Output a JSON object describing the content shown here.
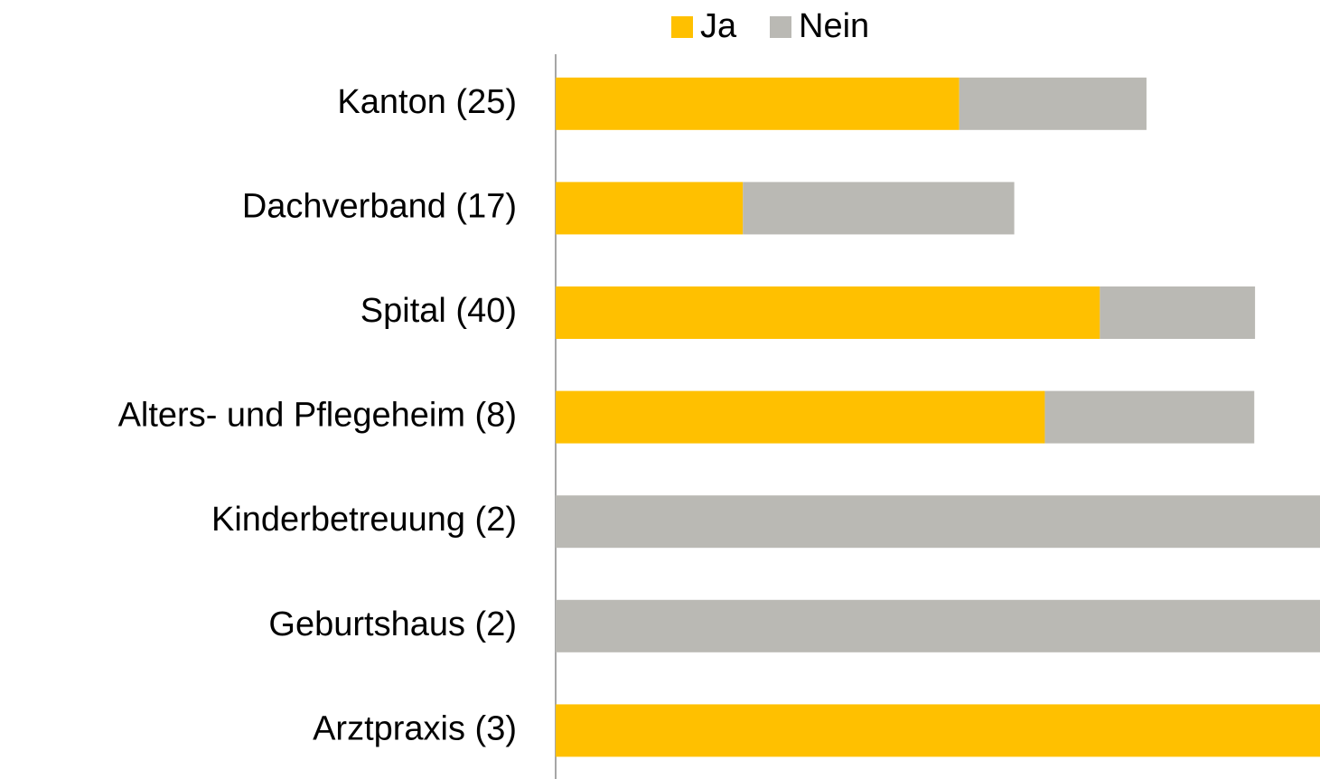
{
  "chart_data": {
    "type": "stacked-barh",
    "categories": [
      "Kanton (25)",
      "Dachverband (17)",
      "Spital (40)",
      "Alters- und Pflegeheim (8)",
      "Kinderbetreuung (2)",
      "Geburtshaus (2)",
      "Arztpraxis (3)"
    ],
    "series": [
      {
        "name": "Ja",
        "color": "#ffc000",
        "values": [
          52.8,
          24.5,
          71.2,
          64,
          0,
          0,
          100
        ]
      },
      {
        "name": "Nein",
        "color": "#bab9b4",
        "values": [
          24.5,
          35.5,
          20.3,
          27.4,
          100,
          100,
          0
        ]
      }
    ],
    "xlim": [
      0,
      100
    ]
  }
}
